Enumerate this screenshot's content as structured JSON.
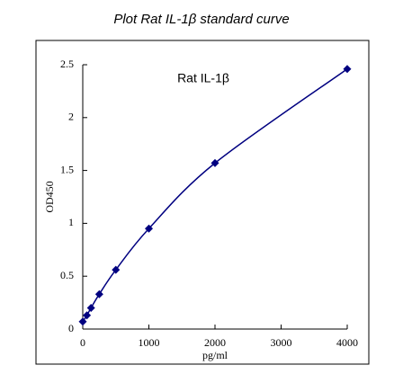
{
  "chart_data": {
    "type": "scatter-line",
    "title": "Plot Rat IL-1β standard curve",
    "annotation": "Rat IL-1β",
    "x_label": "pg/ml",
    "y_label": "OD450",
    "x": [
      0,
      62.5,
      125,
      250,
      500,
      1000,
      2000,
      4000
    ],
    "values": [
      0.07,
      0.13,
      0.2,
      0.33,
      0.56,
      0.95,
      1.57,
      2.46
    ],
    "color": "#000080",
    "xlim": [
      0,
      4000
    ],
    "xticks": [
      0,
      1000,
      2000,
      3000,
      4000
    ],
    "ylim": [
      0,
      2.5
    ],
    "yticks": [
      0,
      0.5,
      1,
      1.5,
      2,
      2.5
    ]
  }
}
